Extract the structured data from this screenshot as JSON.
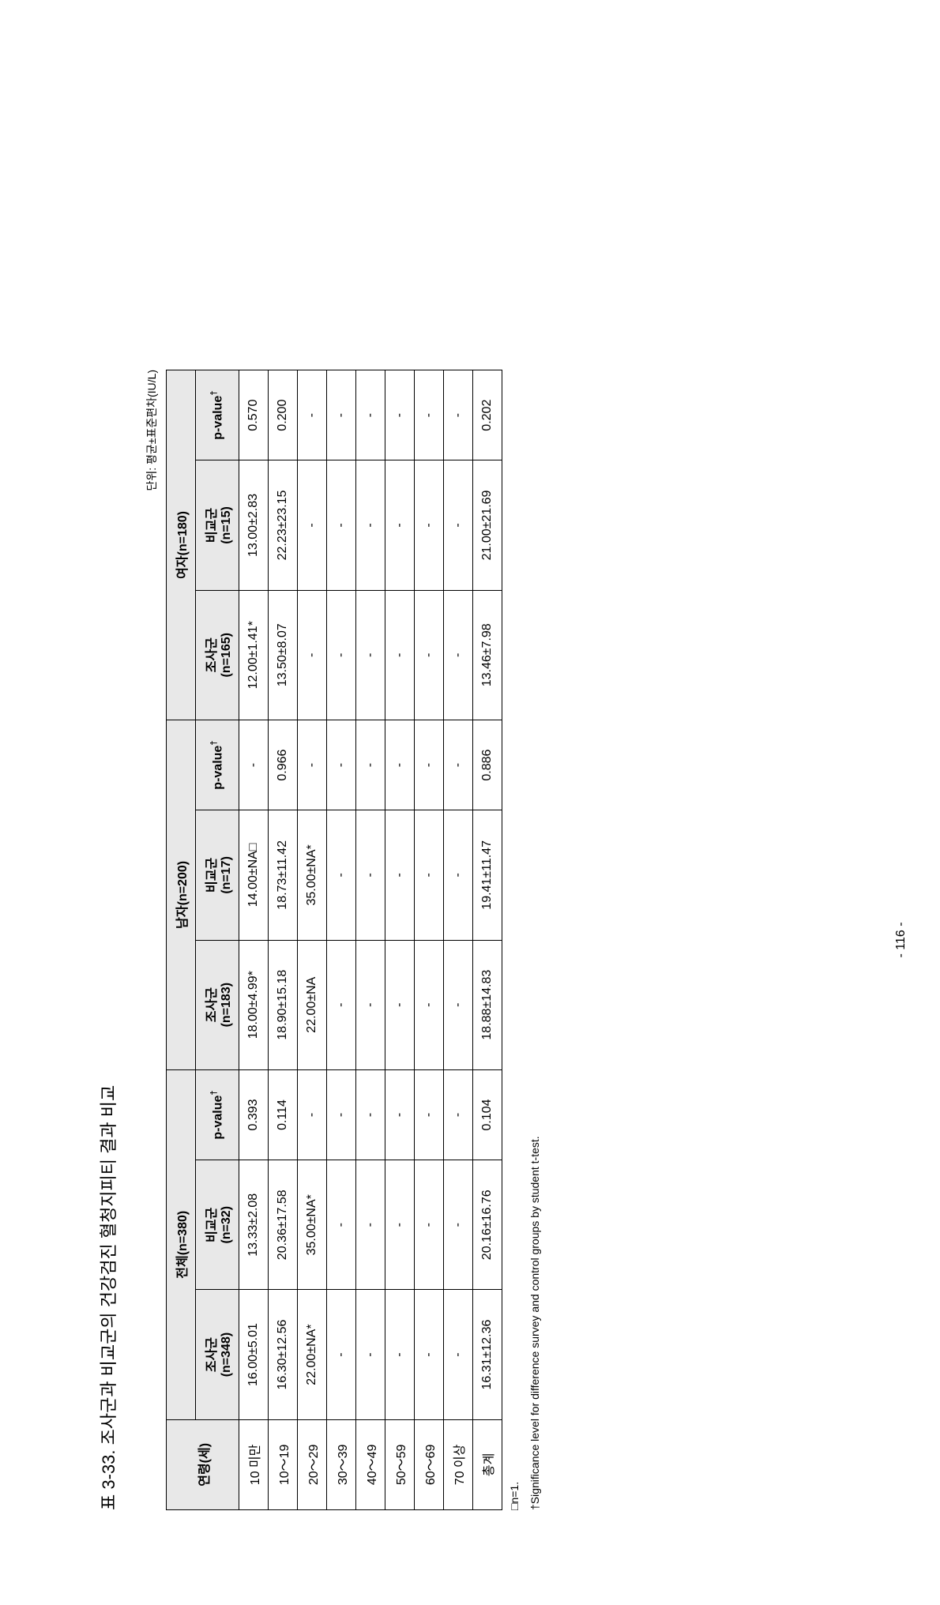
{
  "title": "표 3-33. 조사군과 비교군의 건강검진 혈청지피티 결과 비교",
  "unit_note": "단위: 평균±표준편차(IU/L)",
  "page_number": "- 116 -",
  "table": {
    "header": {
      "row_label": "연령(세)",
      "groups": [
        {
          "label": "전체(n=380)",
          "survey": "조사군\n(n=348)",
          "control": "비교군\n(n=32)",
          "pvalue": "p-value"
        },
        {
          "label": "남자(n=200)",
          "survey": "조사군\n(n=183)",
          "control": "비교군\n(n=17)",
          "pvalue": "p-value"
        },
        {
          "label": "여자(n=180)",
          "survey": "조사군\n(n=165)",
          "control": "비교군\n(n=15)",
          "pvalue": "p-value"
        }
      ]
    },
    "rows": [
      {
        "age": "10 미만",
        "cells": [
          "16.00±5.01",
          "13.33±2.08",
          "0.393",
          "18.00±4.99*",
          "14.00±NA□",
          "-",
          "12.00±1.41*",
          "13.00±2.83",
          "0.570"
        ]
      },
      {
        "age": "10～19",
        "cells": [
          "16.30±12.56",
          "20.36±17.58",
          "0.114",
          "18.90±15.18",
          "18.73±11.42",
          "0.966",
          "13.50±8.07",
          "22.23±23.15",
          "0.200"
        ]
      },
      {
        "age": "20～29",
        "cells": [
          "22.00±NA*",
          "35.00±NA*",
          "-",
          "22.00±NA",
          "35.00±NA*",
          "-",
          "-",
          "-",
          "-"
        ]
      },
      {
        "age": "30～39",
        "cells": [
          "-",
          "-",
          "-",
          "-",
          "-",
          "-",
          "-",
          "-",
          "-"
        ]
      },
      {
        "age": "40～49",
        "cells": [
          "-",
          "-",
          "-",
          "-",
          "-",
          "-",
          "-",
          "-",
          "-"
        ]
      },
      {
        "age": "50～59",
        "cells": [
          "-",
          "-",
          "-",
          "-",
          "-",
          "-",
          "-",
          "-",
          "-"
        ]
      },
      {
        "age": "60～69",
        "cells": [
          "-",
          "-",
          "-",
          "-",
          "-",
          "-",
          "-",
          "-",
          "-"
        ]
      },
      {
        "age": "70 이상",
        "cells": [
          "-",
          "-",
          "-",
          "-",
          "-",
          "-",
          "-",
          "-",
          "-"
        ]
      },
      {
        "age": "총계",
        "cells": [
          "16.31±12.36",
          "20.16±16.76",
          "0.104",
          "18.88±14.83",
          "19.41±11.47",
          "0.886",
          "13.46±7.98",
          "21.00±21.69",
          "0.202"
        ]
      }
    ]
  },
  "footnotes": [
    "□n=1.",
    "†Significance level for difference survey and control groups by student t-test."
  ],
  "sup_dagger": "†",
  "colors": {
    "header_bg": "#e8e8e8",
    "border": "#000000",
    "text": "#000000",
    "background": "#ffffff"
  },
  "font_sizes": {
    "title": 22,
    "unit_note": 14,
    "cell": 16,
    "footnote": 14,
    "page_number": 16
  }
}
